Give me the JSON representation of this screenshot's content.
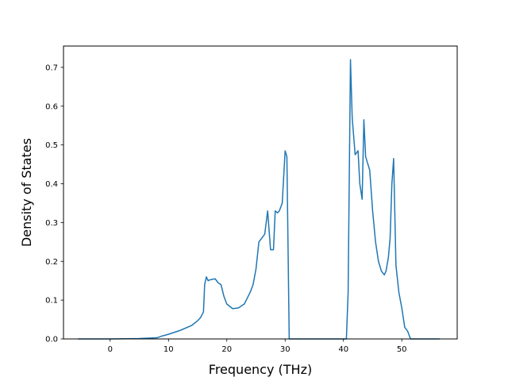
{
  "chart_data": {
    "type": "line",
    "title": "",
    "xlabel": "Frequency (THz)",
    "ylabel": "Density of States",
    "xlim": [
      -8.0,
      59.5
    ],
    "ylim": [
      0.0,
      0.755
    ],
    "grid": false,
    "xticks": [
      0,
      10,
      20,
      30,
      40,
      50
    ],
    "yticks": [
      0.0,
      0.1,
      0.2,
      0.3,
      0.4,
      0.5,
      0.6,
      0.7
    ],
    "series": [
      {
        "color": "#1f77b4",
        "x": [
          -5.5,
          0,
          5,
          8,
          9,
          10,
          12,
          14,
          15,
          15.5,
          16,
          16.2,
          16.5,
          16.8,
          17,
          18,
          18.5,
          19,
          19.5,
          20,
          21,
          22,
          23,
          24,
          24.5,
          25,
          25.5,
          26,
          26.5,
          27,
          27.5,
          28,
          28.3,
          28.7,
          29,
          29.5,
          30,
          30.3,
          30.7,
          31,
          35,
          40.5,
          40.8,
          41.2,
          41.5,
          42,
          42.5,
          42.8,
          43.2,
          43.5,
          43.8,
          44.5,
          45,
          45.5,
          46,
          46.5,
          47,
          47.3,
          47.7,
          48,
          48.3,
          48.6,
          49,
          49.5,
          50,
          50.5,
          51,
          51.5,
          55,
          56.5
        ],
        "y": [
          0.0,
          0.0,
          0.001,
          0.003,
          0.008,
          0.012,
          0.022,
          0.035,
          0.047,
          0.055,
          0.07,
          0.14,
          0.16,
          0.15,
          0.152,
          0.155,
          0.145,
          0.14,
          0.11,
          0.09,
          0.078,
          0.08,
          0.09,
          0.12,
          0.14,
          0.18,
          0.25,
          0.26,
          0.27,
          0.33,
          0.23,
          0.23,
          0.33,
          0.325,
          0.33,
          0.35,
          0.485,
          0.47,
          0.0,
          0.0,
          0.0,
          0.0,
          0.12,
          0.72,
          0.57,
          0.475,
          0.485,
          0.4,
          0.36,
          0.565,
          0.47,
          0.435,
          0.33,
          0.25,
          0.2,
          0.175,
          0.165,
          0.175,
          0.21,
          0.26,
          0.4,
          0.465,
          0.19,
          0.12,
          0.08,
          0.03,
          0.02,
          0.0,
          0.0,
          0.0
        ]
      }
    ]
  }
}
